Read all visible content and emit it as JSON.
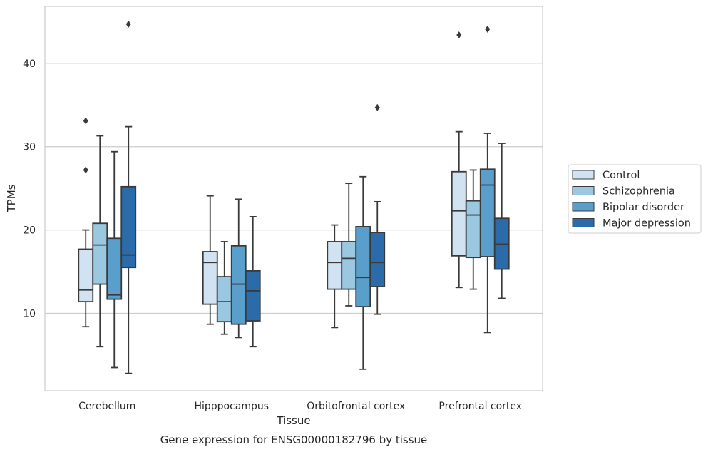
{
  "caption": "Gene expression for ENSG00000182796 by tissue",
  "chart_data": {
    "type": "box",
    "xlabel": "Tissue",
    "ylabel": "TPMs",
    "ylim": [
      1,
      46
    ],
    "yticks": [
      10,
      20,
      30,
      40
    ],
    "grid": "horizontal",
    "legend_position": "right",
    "categories": [
      "Cerebellum",
      "Hipppocampus",
      "Orbitofrontal cortex",
      "Prefrontal cortex"
    ],
    "series": [
      {
        "name": "Control",
        "color": "#d1e2f2",
        "boxes": [
          {
            "whislo": 8.4,
            "q1": 11.4,
            "med": 12.8,
            "q3": 17.7,
            "whishi": 20.0,
            "fliers": [
              27.2,
              33.1
            ]
          },
          {
            "whislo": 8.7,
            "q1": 11.1,
            "med": 16.1,
            "q3": 17.4,
            "whishi": 24.1,
            "fliers": []
          },
          {
            "whislo": 8.3,
            "q1": 12.9,
            "med": 16.1,
            "q3": 18.6,
            "whishi": 20.6,
            "fliers": []
          },
          {
            "whislo": 13.1,
            "q1": 16.9,
            "med": 22.3,
            "q3": 27.0,
            "whishi": 31.8,
            "fliers": [
              43.4
            ]
          }
        ]
      },
      {
        "name": "Schizophrenia",
        "color": "#9ac8e0",
        "boxes": [
          {
            "whislo": 6.0,
            "q1": 13.5,
            "med": 18.2,
            "q3": 20.8,
            "whishi": 31.3,
            "fliers": []
          },
          {
            "whislo": 7.5,
            "q1": 9.0,
            "med": 11.4,
            "q3": 14.4,
            "whishi": 18.6,
            "fliers": []
          },
          {
            "whislo": 10.9,
            "q1": 12.9,
            "med": 16.6,
            "q3": 18.6,
            "whishi": 25.6,
            "fliers": []
          },
          {
            "whislo": 12.9,
            "q1": 16.7,
            "med": 21.8,
            "q3": 23.5,
            "whishi": 27.2,
            "fliers": []
          }
        ]
      },
      {
        "name": "Bipolar disorder",
        "color": "#5a9fcc",
        "boxes": [
          {
            "whislo": 3.5,
            "q1": 11.7,
            "med": 12.2,
            "q3": 19.0,
            "whishi": 29.4,
            "fliers": []
          },
          {
            "whislo": 7.1,
            "q1": 8.7,
            "med": 13.5,
            "q3": 18.1,
            "whishi": 23.7,
            "fliers": []
          },
          {
            "whislo": 3.3,
            "q1": 10.8,
            "med": 14.3,
            "q3": 20.4,
            "whishi": 26.4,
            "fliers": []
          },
          {
            "whislo": 7.7,
            "q1": 16.8,
            "med": 25.4,
            "q3": 27.3,
            "whishi": 31.6,
            "fliers": [
              44.1
            ]
          }
        ]
      },
      {
        "name": "Major depression",
        "color": "#2b6ba9",
        "boxes": [
          {
            "whislo": 2.8,
            "q1": 15.5,
            "med": 17.0,
            "q3": 25.2,
            "whishi": 32.4,
            "fliers": [
              44.7
            ]
          },
          {
            "whislo": 6.0,
            "q1": 9.1,
            "med": 12.7,
            "q3": 15.1,
            "whishi": 21.6,
            "fliers": []
          },
          {
            "whislo": 9.9,
            "q1": 13.2,
            "med": 16.1,
            "q3": 19.7,
            "whishi": 23.4,
            "fliers": [
              34.7
            ]
          },
          {
            "whislo": 11.8,
            "q1": 15.3,
            "med": 18.3,
            "q3": 21.4,
            "whishi": 30.4,
            "fliers": []
          }
        ]
      }
    ]
  }
}
